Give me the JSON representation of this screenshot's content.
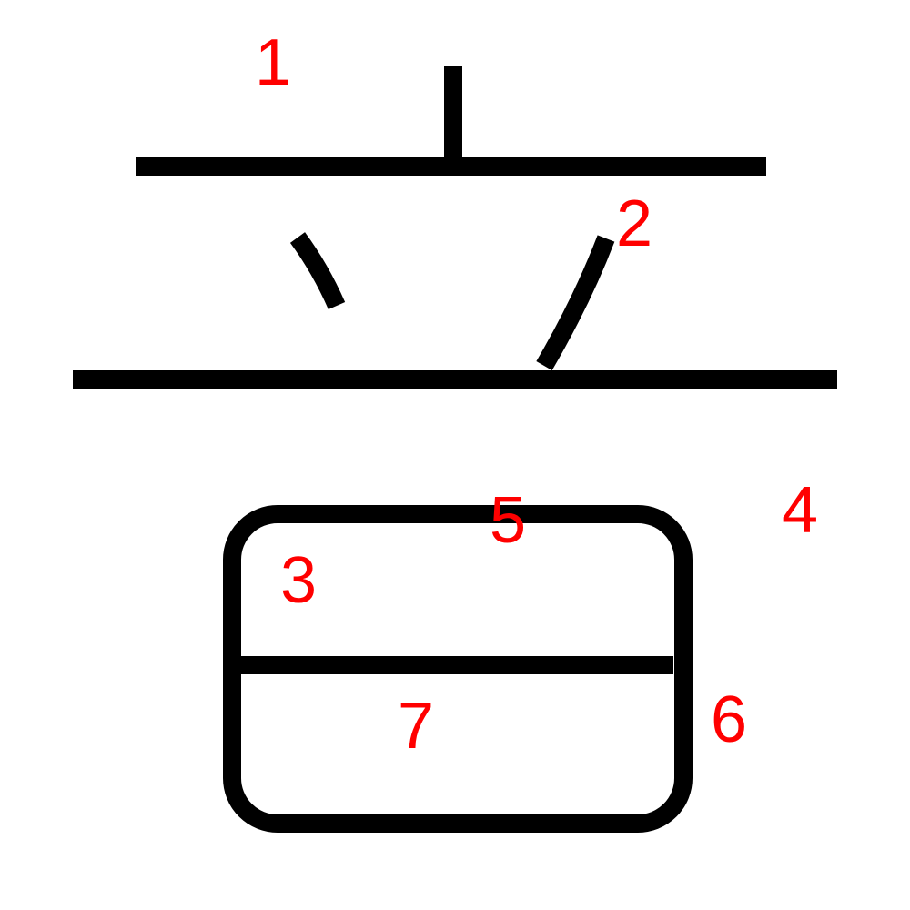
{
  "colors": {
    "stroke": "#000000",
    "number": "#ff0000",
    "background": "#ffffff"
  },
  "stroke_numbers": [
    "1",
    "2",
    "3",
    "4",
    "5",
    "6",
    "7"
  ]
}
